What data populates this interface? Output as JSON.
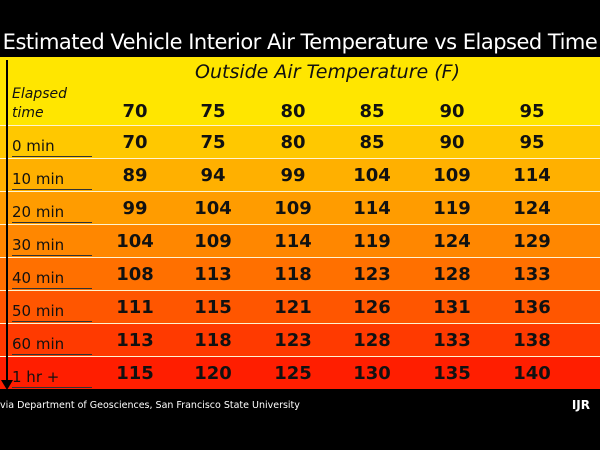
{
  "title": "Estimated Vehicle Interior Air Temperature vs Elapsed Time",
  "subtitle": "Outside Air Temperature (F)",
  "elapsed_label_1": "Elapsed",
  "elapsed_label_2": "time",
  "header_values": [
    "70",
    "75",
    "80",
    "85",
    "90",
    "95"
  ],
  "rows": [
    {
      "label": "0 min",
      "values": [
        "70",
        "75",
        "80",
        "85",
        "90",
        "95"
      ],
      "color": "#ffc800"
    },
    {
      "label": "10 min",
      "values": [
        "89",
        "94",
        "99",
        "104",
        "109",
        "114"
      ],
      "color": "#ffb000"
    },
    {
      "label": "20 min",
      "values": [
        "99",
        "104",
        "109",
        "114",
        "119",
        "124"
      ],
      "color": "#ff9c00"
    },
    {
      "label": "30 min",
      "values": [
        "104",
        "109",
        "114",
        "119",
        "124",
        "129"
      ],
      "color": "#ff8700"
    },
    {
      "label": "40 min",
      "values": [
        "108",
        "113",
        "118",
        "123",
        "128",
        "133"
      ],
      "color": "#ff7000"
    },
    {
      "label": "50 min",
      "values": [
        "111",
        "115",
        "121",
        "126",
        "131",
        "136"
      ],
      "color": "#ff5600"
    },
    {
      "label": "60 min",
      "values": [
        "113",
        "118",
        "123",
        "128",
        "133",
        "138"
      ],
      "color": "#ff3a00"
    },
    {
      "label": "1 hr +",
      "values": [
        "115",
        "120",
        "125",
        "130",
        "135",
        "140"
      ],
      "color": "#ff1e00"
    }
  ],
  "credit": "via Department of Geosciences, San Francisco State University",
  "logo": "IJR"
}
